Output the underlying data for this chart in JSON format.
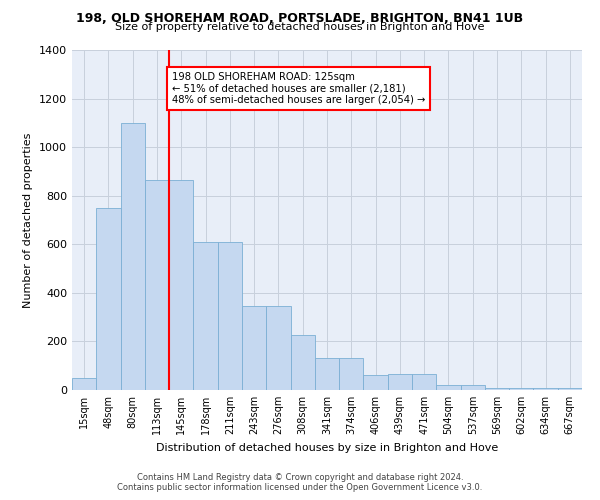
{
  "title1": "198, OLD SHOREHAM ROAD, PORTSLADE, BRIGHTON, BN41 1UB",
  "title2": "Size of property relative to detached houses in Brighton and Hove",
  "xlabel": "Distribution of detached houses by size in Brighton and Hove",
  "ylabel": "Number of detached properties",
  "footnote1": "Contains HM Land Registry data © Crown copyright and database right 2024.",
  "footnote2": "Contains public sector information licensed under the Open Government Licence v3.0.",
  "categories": [
    "15sqm",
    "48sqm",
    "80sqm",
    "113sqm",
    "145sqm",
    "178sqm",
    "211sqm",
    "243sqm",
    "276sqm",
    "308sqm",
    "341sqm",
    "374sqm",
    "406sqm",
    "439sqm",
    "471sqm",
    "504sqm",
    "537sqm",
    "569sqm",
    "602sqm",
    "634sqm",
    "667sqm"
  ],
  "bar_values": [
    50,
    750,
    1100,
    865,
    865,
    610,
    610,
    345,
    345,
    225,
    130,
    130,
    60,
    65,
    65,
    20,
    20,
    10,
    10,
    10,
    10
  ],
  "bar_color": "#c5d8f0",
  "bar_edge_color": "#7bafd4",
  "vline_color": "red",
  "annotation_text": "198 OLD SHOREHAM ROAD: 125sqm\n← 51% of detached houses are smaller (2,181)\n48% of semi-detached houses are larger (2,054) →",
  "annotation_box_color": "white",
  "annotation_box_edge_color": "red",
  "ylim": [
    0,
    1400
  ],
  "yticks": [
    0,
    200,
    400,
    600,
    800,
    1000,
    1200,
    1400
  ],
  "grid_color": "#c8d0dc",
  "background_color": "#e8eef8",
  "property_sqm": 125,
  "bin_width": 33
}
